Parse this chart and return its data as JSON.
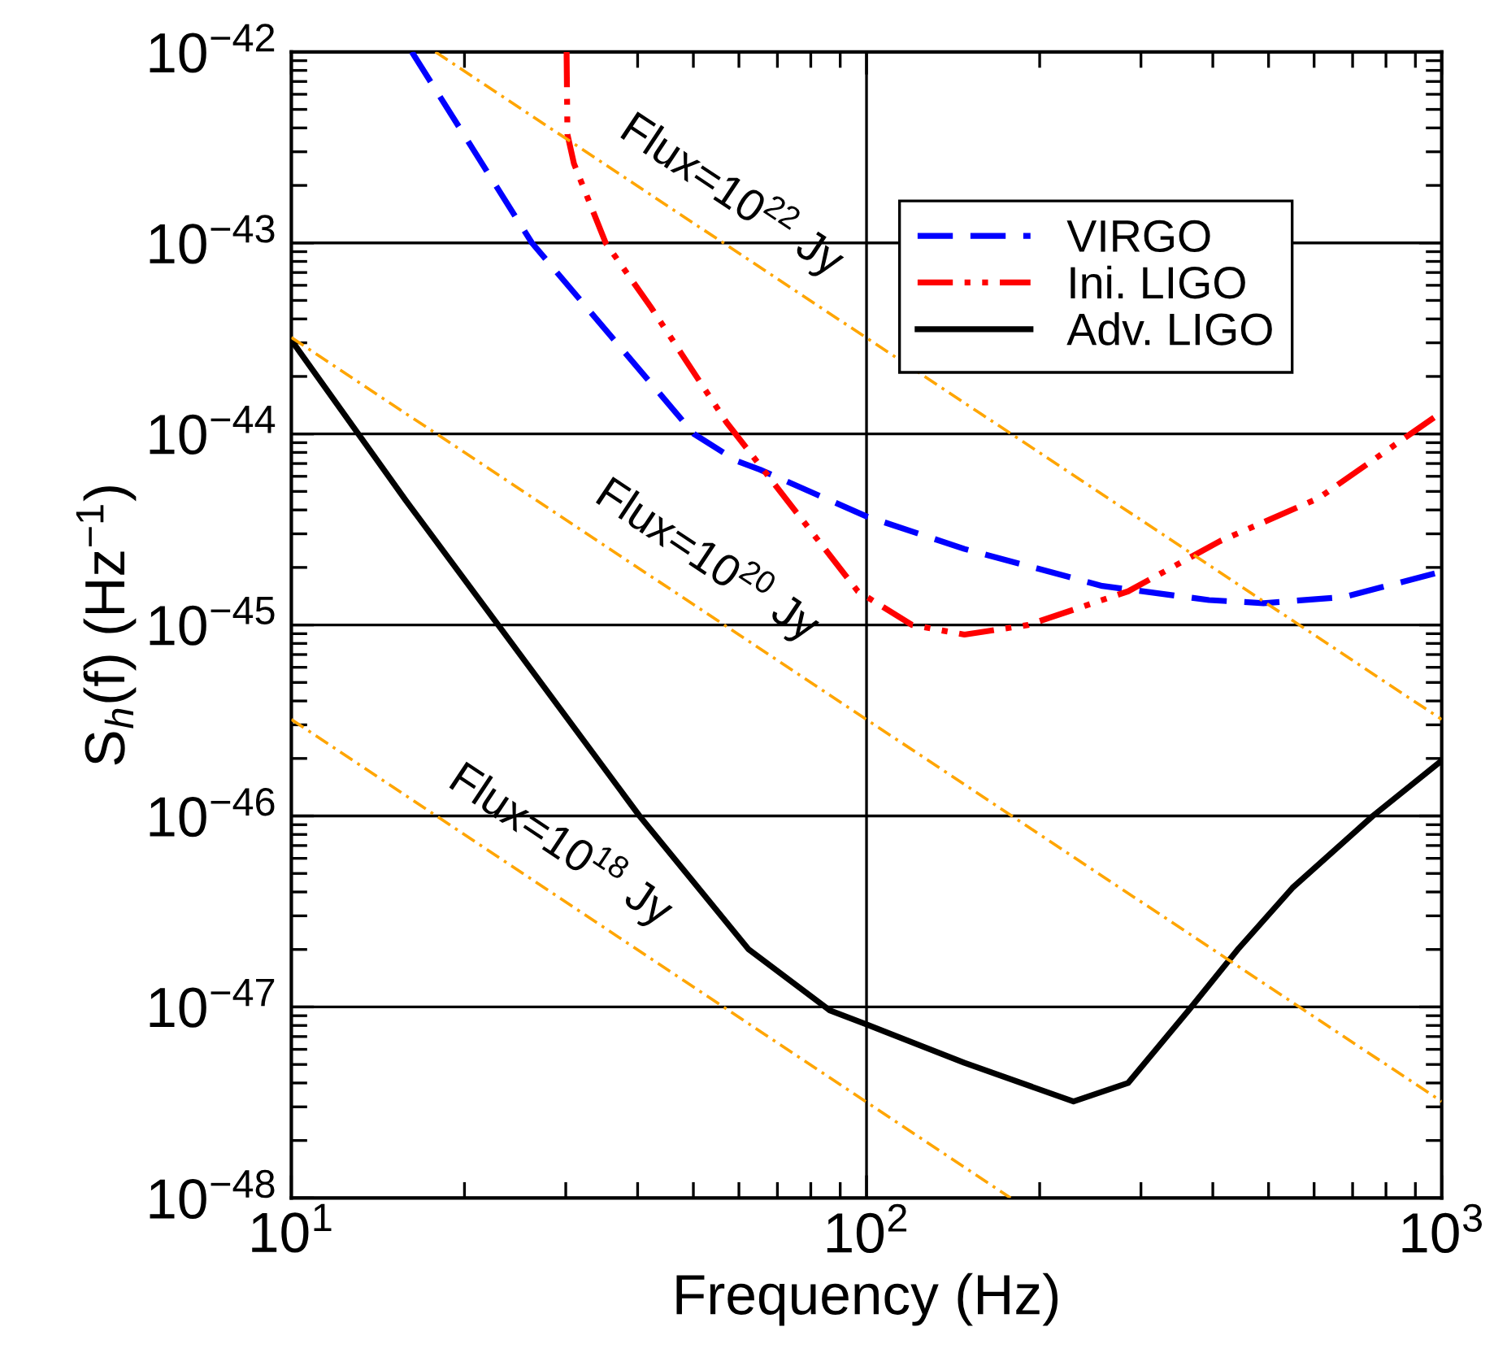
{
  "chart_data": {
    "type": "line",
    "xlabel": "Frequency (Hz)",
    "ylabel": "S$_{h}$(f) (Hz$^{−1}$)",
    "log": "xy",
    "grid": true,
    "legend": "top right",
    "xlim": [
      10,
      1000
    ],
    "ylim": [
      1e-48,
      1e-42
    ],
    "xticks": [
      {
        "value": 10,
        "label": "10$^{1}$"
      },
      {
        "value": 100,
        "label": "10$^{2}$"
      },
      {
        "value": 1000,
        "label": "10$^{3}$"
      }
    ],
    "yticks": [
      {
        "value": 1e-48,
        "label": "10$^{−48}$"
      },
      {
        "value": 1e-47,
        "label": "10$^{−47}$"
      },
      {
        "value": 1e-46,
        "label": "10$^{−46}$"
      },
      {
        "value": 1e-45,
        "label": "10$^{−45}$"
      },
      {
        "value": 1e-44,
        "label": "10$^{−44}$"
      },
      {
        "value": 1e-43,
        "label": "10$^{−43}$"
      },
      {
        "value": 1e-42,
        "label": "10$^{−42}$"
      }
    ],
    "series": [
      {
        "name": "VIRGO",
        "color": "#0000ff",
        "line_style": "dashed",
        "x": [
          16.2,
          26.2,
          50.1,
          59.6,
          65.3,
          100,
          148,
          257,
          394,
          490,
          676,
          1000
        ],
        "values": [
          1e-42,
          1e-43,
          1e-44,
          7.2e-45,
          6.5e-45,
          3.7e-45,
          2.5e-45,
          1.6e-45,
          1.35e-45,
          1.3e-45,
          1.4e-45,
          1.9e-45
        ]
      },
      {
        "name": "Ini. LIGO",
        "color": "#ff0000",
        "line_style": "dashdot",
        "x": [
          30.1,
          30.2,
          31.0,
          35.2,
          42.2,
          57.1,
          77.6,
          96.6,
          120,
          148,
          191,
          285,
          412,
          610,
          1000
        ],
        "values": [
          1e-42,
          3.7e-43,
          2.6e-43,
          1e-43,
          4.6e-44,
          1.15e-44,
          3.5e-45,
          1.5e-45,
          1e-45,
          8.9e-46,
          1e-45,
          1.5e-45,
          2.75e-45,
          4.6e-45,
          1.3e-44
        ]
      },
      {
        "name": "Adv. LIGO",
        "color": "#000000",
        "line_style": "solid",
        "x": [
          10,
          15.8,
          23,
          40.3,
          62.4,
          86.3,
          100,
          148,
          229,
          285,
          363,
          442,
          550,
          759,
          1000
        ],
        "values": [
          3.1e-44,
          4.5e-45,
          9.8e-46,
          1e-46,
          2e-47,
          9.6e-48,
          8.1e-48,
          5.1e-48,
          3.2e-48,
          4e-48,
          9.6e-48,
          2e-47,
          4.2e-47,
          1e-46,
          1.95e-46
        ]
      },
      {
        "color": "#ffa500",
        "line_style": "dashdot",
        "x": [
          17.8,
          1000
        ],
        "values": [
          1e-42,
          3.2e-46
        ]
      },
      {
        "color": "#ffa500",
        "line_style": "dashdot",
        "x": [
          10,
          1000
        ],
        "values": [
          3.2e-44,
          3.2e-48
        ]
      },
      {
        "color": "#ffa500",
        "line_style": "dashdot",
        "x": [
          10,
          178
        ],
        "values": [
          3.2e-46,
          1e-48
        ]
      }
    ],
    "annotations": [
      "Flux=10$^{22}$ Jy",
      "Flux=10$^{20}$ Jy",
      "Flux=10$^{18}$ Jy"
    ]
  }
}
